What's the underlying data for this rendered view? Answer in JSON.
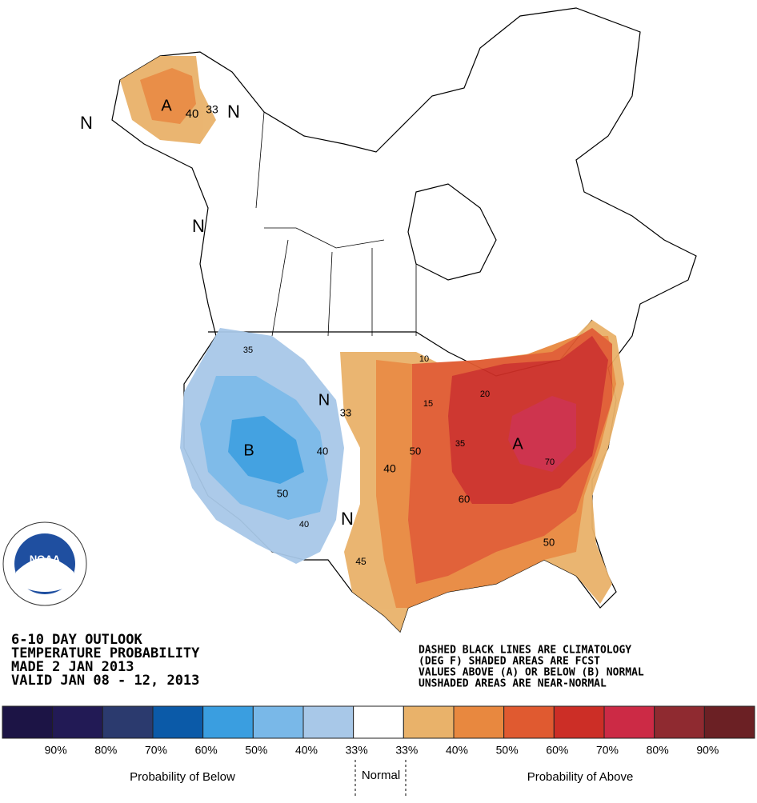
{
  "map": {
    "labels": [
      "N",
      "A",
      "40",
      "33",
      "N",
      "N",
      "35",
      "N",
      "33",
      "B",
      "40",
      "50",
      "40",
      "N",
      "45",
      "40",
      "50",
      "10",
      "15",
      "35",
      "20",
      "A",
      "70",
      "60",
      "50"
    ]
  },
  "logo": {
    "text": "NOAA"
  },
  "header": {
    "lines": [
      "6-10 DAY OUTLOOK",
      "TEMPERATURE PROBABILITY",
      "MADE  2 JAN 2013",
      "VALID  JAN 08 - 12, 2013"
    ]
  },
  "note": {
    "lines": [
      "DASHED BLACK LINES ARE CLIMATOLOGY",
      "(DEG F) SHADED AREAS ARE FCST",
      "VALUES ABOVE (A) OR BELOW (B) NORMAL",
      "UNSHADED AREAS ARE NEAR-NORMAL"
    ]
  },
  "legend": {
    "colors": [
      "#1c1445",
      "#221a55",
      "#2b3a6e",
      "#0b5aa8",
      "#3a9ee0",
      "#79b8e8",
      "#a8c8e8",
      "#ffffff",
      "#e9b26a",
      "#e8883f",
      "#e05a30",
      "#cc2e26",
      "#cc2a45",
      "#8f2a30",
      "#6b2024"
    ],
    "labels": [
      "90%",
      "80%",
      "70%",
      "60%",
      "50%",
      "40%",
      "33%",
      "33%",
      "40%",
      "50%",
      "60%",
      "70%",
      "80%",
      "90%"
    ],
    "below": "Probability of Below",
    "normal": "Normal",
    "above": "Probability of Above"
  }
}
